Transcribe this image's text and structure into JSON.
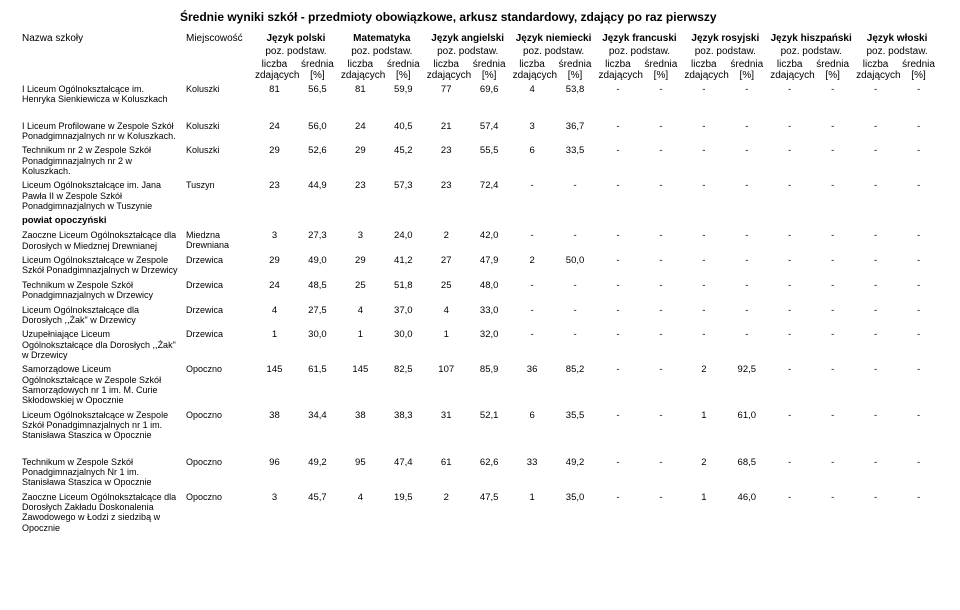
{
  "title": "Średnie wyniki szkół - przedmioty obowiązkowe, arkusz standardowy, zdający po raz pierwszy",
  "header": {
    "school_name": "Nazwa szkoły",
    "town": "Miejscowość",
    "subjects": [
      "Język polski",
      "Matematyka",
      "Język angielski",
      "Język niemiecki",
      "Język francuski",
      "Język rosyjski",
      "Język hiszpański",
      "Język włoski"
    ],
    "level": "poz. podstaw.",
    "count_label": "liczba zdających",
    "avg_label": "średnia [%]"
  },
  "rows": [
    {
      "school": "I Liceum Ogólnokształcące im. Henryka Sienkiewicza w Koluszkach",
      "town": "Koluszki",
      "vals": [
        "81",
        "56,5",
        "81",
        "59,9",
        "77",
        "69,6",
        "4",
        "53,8",
        "-",
        "-",
        "-",
        "-",
        "-",
        "-",
        "-",
        "-"
      ]
    },
    {
      "spacer": true
    },
    {
      "school": "I Liceum Profilowane w Zespole Szkół Ponadgimnazjalnych nr w Koluszkach.",
      "town": "Koluszki",
      "vals": [
        "24",
        "56,0",
        "24",
        "40,5",
        "21",
        "57,4",
        "3",
        "36,7",
        "-",
        "-",
        "-",
        "-",
        "-",
        "-",
        "-",
        "-"
      ]
    },
    {
      "school": "Technikum nr 2 w Zespole Szkół Ponadgimnazjalnych nr 2 w Koluszkach.",
      "town": "Koluszki",
      "vals": [
        "29",
        "52,6",
        "29",
        "45,2",
        "23",
        "55,5",
        "6",
        "33,5",
        "-",
        "-",
        "-",
        "-",
        "-",
        "-",
        "-",
        "-"
      ]
    },
    {
      "school": "Liceum Ogólnokształcące im. Jana Pawła II w Zespole Szkół Ponadgimnazjalnych w Tuszynie",
      "town": "Tuszyn",
      "vals": [
        "23",
        "44,9",
        "23",
        "57,3",
        "23",
        "72,4",
        "-",
        "-",
        "-",
        "-",
        "-",
        "-",
        "-",
        "-",
        "-",
        "-"
      ]
    },
    {
      "section": "powiat opoczyński"
    },
    {
      "school": "Zaoczne Liceum Ogólnokształcące dla Dorosłych  w Miedznej Drewnianej",
      "town": "Miedzna Drewniana",
      "vals": [
        "3",
        "27,3",
        "3",
        "24,0",
        "2",
        "42,0",
        "-",
        "-",
        "-",
        "-",
        "-",
        "-",
        "-",
        "-",
        "-",
        "-"
      ]
    },
    {
      "school": "Liceum Ogólnokształcące w Zespole Szkół Ponadgimnazjalnych w Drzewicy",
      "town": "Drzewica",
      "vals": [
        "29",
        "49,0",
        "29",
        "41,2",
        "27",
        "47,9",
        "2",
        "50,0",
        "-",
        "-",
        "-",
        "-",
        "-",
        "-",
        "-",
        "-"
      ]
    },
    {
      "school": "Technikum w Zespole Szkół Ponadgimnazjalnych w Drzewicy",
      "town": "Drzewica",
      "vals": [
        "24",
        "48,5",
        "25",
        "51,8",
        "25",
        "48,0",
        "-",
        "-",
        "-",
        "-",
        "-",
        "-",
        "-",
        "-",
        "-",
        "-"
      ]
    },
    {
      "school": "Liceum Ogólnokształcące dla Dorosłych ,,Żak\" w Drzewicy",
      "town": "Drzewica",
      "vals": [
        "4",
        "27,5",
        "4",
        "37,0",
        "4",
        "33,0",
        "-",
        "-",
        "-",
        "-",
        "-",
        "-",
        "-",
        "-",
        "-",
        "-"
      ]
    },
    {
      "school": "Uzupełniające Liceum Ogólnokształcące dla Dorosłych ,,Żak\" w Drzewicy",
      "town": "Drzewica",
      "vals": [
        "1",
        "30,0",
        "1",
        "30,0",
        "1",
        "32,0",
        "-",
        "-",
        "-",
        "-",
        "-",
        "-",
        "-",
        "-",
        "-",
        "-"
      ]
    },
    {
      "school": "Samorządowe Liceum Ogólnokształcące w Zespole Szkół Samorządowych nr 1 im. M. Curie Skłodowskiej w Opocznie",
      "town": "Opoczno",
      "vals": [
        "145",
        "61,5",
        "145",
        "82,5",
        "107",
        "85,9",
        "36",
        "85,2",
        "-",
        "-",
        "2",
        "92,5",
        "-",
        "-",
        "-",
        "-"
      ]
    },
    {
      "school": "Liceum Ogólnokształcące w Zespole Szkół Ponadgimnazjalnych nr 1 im. Stanisława Staszica w Opocznie",
      "town": "Opoczno",
      "vals": [
        "38",
        "34,4",
        "38",
        "38,3",
        "31",
        "52,1",
        "6",
        "35,5",
        "-",
        "-",
        "1",
        "61,0",
        "-",
        "-",
        "-",
        "-"
      ]
    },
    {
      "spacer": true
    },
    {
      "school": "Technikum  w Zespole Szkół Ponadgimnazjalnych Nr 1 im. Stanisława Staszica w Opocznie",
      "town": "Opoczno",
      "vals": [
        "96",
        "49,2",
        "95",
        "47,4",
        "61",
        "62,6",
        "33",
        "49,2",
        "-",
        "-",
        "2",
        "68,5",
        "-",
        "-",
        "-",
        "-"
      ]
    },
    {
      "school": "Zaoczne Liceum Ogólnokształcące dla Dorosłych Zakładu Doskonalenia Zawodowego w Łodzi z siedzibą w Opocznie",
      "town": "Opoczno",
      "vals": [
        "3",
        "45,7",
        "4",
        "19,5",
        "2",
        "47,5",
        "1",
        "35,0",
        "-",
        "-",
        "1",
        "46,0",
        "-",
        "-",
        "-",
        "-"
      ]
    }
  ]
}
